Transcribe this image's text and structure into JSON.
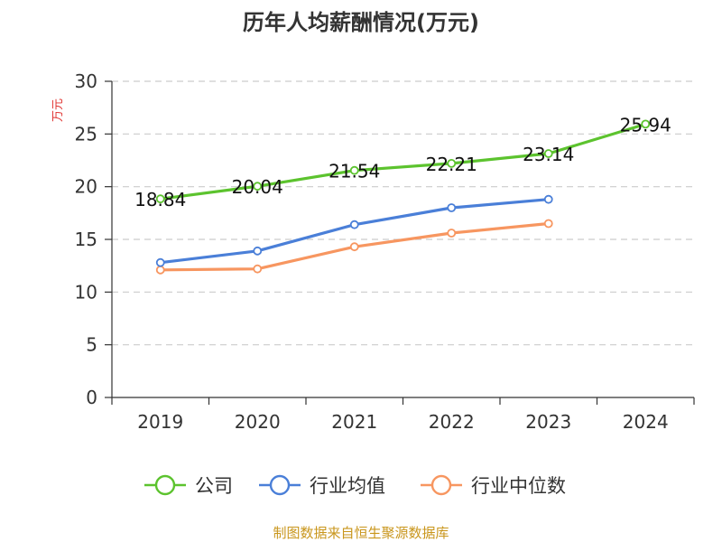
{
  "chart_data": {
    "type": "line",
    "title": "历年人均薪酬情况(万元)",
    "ylabel": "万元",
    "categories": [
      "2019",
      "2020",
      "2021",
      "2022",
      "2023",
      "2024"
    ],
    "ylim": [
      0,
      30
    ],
    "yticks": [
      0,
      5,
      10,
      15,
      20,
      25,
      30
    ],
    "grid": true,
    "legend_position": "bottom",
    "series": [
      {
        "name": "公司",
        "color": "#5cc32e",
        "values": [
          18.84,
          20.04,
          21.54,
          22.21,
          23.14,
          25.94
        ],
        "labels": [
          "18.84",
          "20.04",
          "21.54",
          "22.21",
          "23.14",
          "25.94"
        ]
      },
      {
        "name": "行业均值",
        "color": "#4a7fd8",
        "values": [
          12.8,
          13.9,
          16.4,
          18.0,
          18.8,
          null
        ]
      },
      {
        "name": "行业中位数",
        "color": "#f79660",
        "values": [
          12.1,
          12.2,
          14.3,
          15.6,
          16.5,
          null
        ]
      }
    ]
  },
  "colors": {
    "title": "#333333",
    "ylabel": "#e0312e",
    "source": "#c9961c",
    "axis": "#333333",
    "grid": "#cccccc"
  },
  "source": "制图数据来自恒生聚源数据库"
}
